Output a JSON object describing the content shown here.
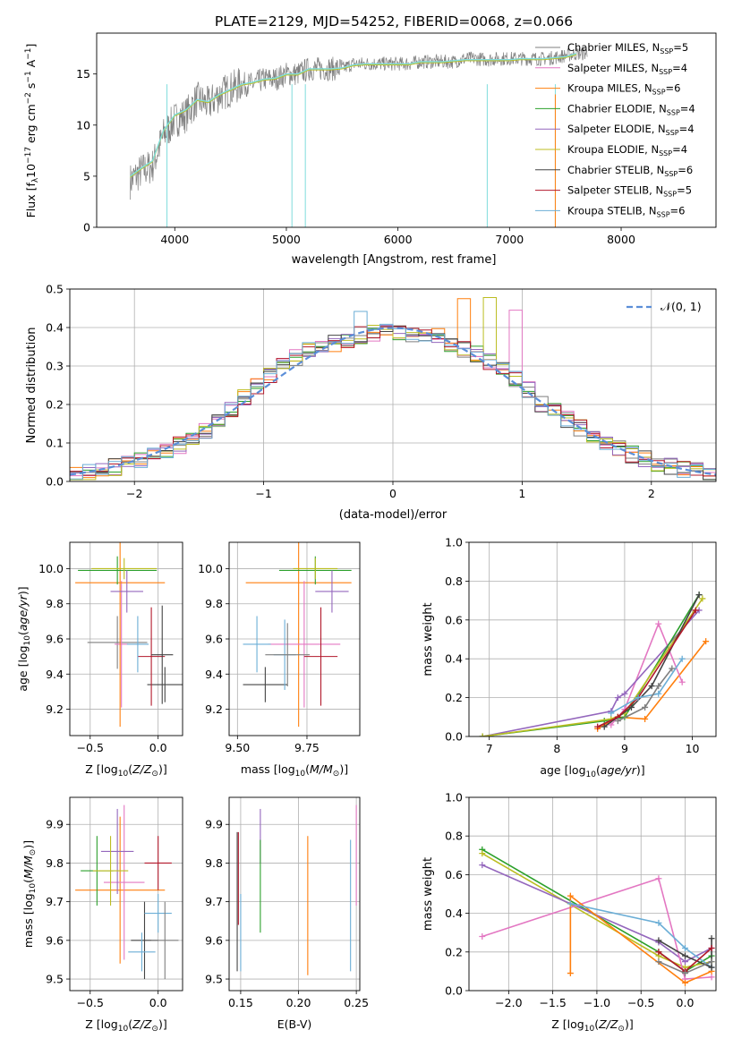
{
  "title": "PLATE=2129, MJD=54252, FIBERID=0068, z=0.066",
  "colors": {
    "Chabrier MILES": "#7f7f7f",
    "Salpeter MILES": "#e377c2",
    "Kroupa MILES": "#ff7f0e",
    "Chabrier ELODIE": "#2ca02c",
    "Salpeter ELODIE": "#9467bd",
    "Kroupa ELODIE": "#bcbd22",
    "Chabrier STELIB": "#444444",
    "Salpeter STELIB": "#b2182b",
    "Kroupa STELIB": "#6baed6"
  },
  "chart_data": [
    {
      "id": "spectrum",
      "type": "line",
      "xlabel": "wavelength [Angstrom, rest frame]",
      "ylabel": "Flux [f_λ10^-17 erg cm^-2 s^-1 A^-1]",
      "xlim": [
        3300,
        8850
      ],
      "ylim": [
        0,
        19
      ],
      "xticks": [
        4000,
        5000,
        6000,
        7000,
        8000
      ],
      "yticks": [
        0,
        5,
        10,
        15
      ],
      "legend_position": "right",
      "legend": [
        {
          "name": "Chabrier MILES",
          "nssp": "5"
        },
        {
          "name": "Salpeter MILES",
          "nssp": "4"
        },
        {
          "name": "Kroupa MILES",
          "nssp": "6"
        },
        {
          "name": "Chabrier ELODIE",
          "nssp": "4"
        },
        {
          "name": "Salpeter ELODIE",
          "nssp": "4"
        },
        {
          "name": "Kroupa ELODIE",
          "nssp": "4"
        },
        {
          "name": "Chabrier STELIB",
          "nssp": "6"
        },
        {
          "name": "Salpeter STELIB",
          "nssp": "5"
        },
        {
          "name": "Kroupa STELIB",
          "nssp": "6"
        }
      ],
      "data_series": {
        "x": [
          3600,
          3700,
          3800,
          3900,
          4000,
          4100,
          4200,
          4300,
          4400,
          4500,
          4600,
          4700,
          4800,
          4900,
          5000,
          5100,
          5200,
          5300,
          5400,
          5500,
          5600,
          5700,
          5800,
          5900,
          6000,
          6100,
          6200,
          6300,
          6400,
          6500,
          6600,
          6700,
          6800,
          6900,
          7000,
          7100,
          7200,
          7300,
          7400,
          7500,
          7600,
          7700
        ],
        "y": [
          4.5,
          5.5,
          6,
          9,
          10.5,
          11,
          12.5,
          12,
          13,
          13.5,
          14,
          14,
          14.5,
          14.5,
          15,
          15,
          15.5,
          15.5,
          15.5,
          15.5,
          16,
          16,
          16,
          16,
          16,
          16,
          16.2,
          16.2,
          16.2,
          16.2,
          16.5,
          16.5,
          16.4,
          16.5,
          16.5,
          16.5,
          16.5,
          16.5,
          16.6,
          16.8,
          17,
          17
        ]
      },
      "model_series": {
        "x": [
          3600,
          3700,
          3800,
          3900,
          4000,
          4100,
          4200,
          4300,
          4400,
          4500,
          4600,
          4700,
          4800,
          4900,
          5000,
          5100,
          5200,
          5300,
          5400,
          5500,
          5600,
          5700,
          5800,
          5900,
          6000,
          6100,
          6200,
          6300,
          6400,
          6500,
          6600,
          6700,
          6800,
          6900,
          7000,
          7100,
          7200,
          7300,
          7400,
          7500,
          7600
        ],
        "y": [
          5,
          5.8,
          6.5,
          9.5,
          11,
          11.5,
          12.5,
          12.3,
          13,
          13.5,
          14,
          14.2,
          14.5,
          14.6,
          15,
          15,
          15.5,
          15.5,
          15.5,
          15.6,
          15.9,
          16,
          16,
          16,
          16,
          16,
          16.2,
          16.2,
          16.2,
          16.3,
          16.4,
          16.4,
          16.4,
          16.4,
          16.4,
          16.5,
          16.5,
          16.5,
          16.6,
          16.7,
          17
        ]
      }
    },
    {
      "id": "residuals",
      "type": "line",
      "xlabel": "(data-model)/error",
      "ylabel": "Normed distribution",
      "xlim": [
        -2.5,
        2.5
      ],
      "ylim": [
        0,
        0.5
      ],
      "xticks": [
        -2,
        -1,
        0,
        1,
        2
      ],
      "yticks": [
        0.0,
        0.1,
        0.2,
        0.3,
        0.4,
        0.5
      ],
      "grid": true,
      "legend_position": "top-right",
      "legend": [
        "𝒩(0, 1)"
      ],
      "bin_edges": [
        -2.5,
        -2.4,
        -2.3,
        -2.2,
        -2.1,
        -2.0,
        -1.9,
        -1.8,
        -1.7,
        -1.6,
        -1.5,
        -1.4,
        -1.3,
        -1.2,
        -1.1,
        -1.0,
        -0.9,
        -0.8,
        -0.7,
        -0.6,
        -0.5,
        -0.4,
        -0.3,
        -0.2,
        -0.1,
        0.0,
        0.1,
        0.2,
        0.3,
        0.4,
        0.5,
        0.6,
        0.7,
        0.8,
        0.9,
        1.0,
        1.1,
        1.2,
        1.3,
        1.4,
        1.5,
        1.6,
        1.7,
        1.8,
        1.9,
        2.0,
        2.1,
        2.2,
        2.3,
        2.4,
        2.5
      ],
      "hist_base": [
        0.018,
        0.026,
        0.03,
        0.038,
        0.045,
        0.055,
        0.065,
        0.08,
        0.095,
        0.11,
        0.13,
        0.16,
        0.19,
        0.22,
        0.25,
        0.275,
        0.3,
        0.32,
        0.34,
        0.35,
        0.36,
        0.37,
        0.38,
        0.385,
        0.39,
        0.39,
        0.385,
        0.38,
        0.375,
        0.36,
        0.345,
        0.33,
        0.31,
        0.29,
        0.265,
        0.24,
        0.2,
        0.18,
        0.16,
        0.14,
        0.12,
        0.1,
        0.085,
        0.07,
        0.06,
        0.045,
        0.038,
        0.03,
        0.026,
        0.02
      ],
      "hist_peaks": [
        {
          "series": "Kroupa MILES",
          "bin": 30,
          "y": 0.475
        },
        {
          "series": "Kroupa ELODIE",
          "bin": 32,
          "y": 0.478
        },
        {
          "series": "Kroupa STELIB",
          "bin": 22,
          "y": 0.442
        },
        {
          "series": "Salpeter MILES",
          "bin": 34,
          "y": 0.445
        }
      ]
    },
    {
      "id": "age-vs-Z",
      "type": "scatter",
      "xlabel": "Z [log10(Z/Z⊙)]",
      "ylabel": "age  [log10(age/yr)]",
      "xlim": [
        -0.65,
        0.18
      ],
      "ylim": [
        9.05,
        10.15
      ],
      "xticks": [
        -0.5,
        0.0
      ],
      "yticks": [
        9.2,
        9.4,
        9.6,
        9.8,
        10.0
      ],
      "grid": true,
      "points": [
        {
          "series": "Chabrier MILES",
          "x": -0.3,
          "y": 9.58,
          "xerr": 0.22,
          "yerr": 0.15
        },
        {
          "series": "Salpeter MILES",
          "x": -0.27,
          "y": 9.57,
          "xerr": 0.05,
          "yerr": 0.36
        },
        {
          "series": "Kroupa MILES",
          "x": -0.28,
          "y": 9.92,
          "xerr": 0.33,
          "yerr": 0.82
        },
        {
          "series": "Chabrier ELODIE",
          "x": -0.3,
          "y": 9.99,
          "xerr": 0.29,
          "yerr": 0.08
        },
        {
          "series": "Salpeter ELODIE",
          "x": -0.23,
          "y": 9.87,
          "xerr": 0.12,
          "yerr": 0.12
        },
        {
          "series": "Kroupa ELODIE",
          "x": -0.25,
          "y": 10.0,
          "xerr": 0.24,
          "yerr": 0.06
        },
        {
          "series": "Chabrier STELIB",
          "x": 0.05,
          "y": 9.34,
          "xerr": 0.13,
          "yerr": 0.1
        },
        {
          "series": "Salpeter STELIB",
          "x": -0.05,
          "y": 9.5,
          "xerr": 0.1,
          "yerr": 0.28
        },
        {
          "series": "Kroupa STELIB",
          "x": -0.15,
          "y": 9.57,
          "xerr": 0.08,
          "yerr": 0.16
        },
        {
          "series": "Chabrier STELIB",
          "x": 0.03,
          "y": 9.51,
          "xerr": 0.08,
          "yerr": 0.28
        }
      ]
    },
    {
      "id": "age-vs-mass",
      "type": "scatter",
      "xlabel": "mass [log10(M/M⊙)]",
      "ylabel": "",
      "xlim": [
        9.47,
        9.94
      ],
      "ylim": [
        9.05,
        10.15
      ],
      "xticks": [
        9.5,
        9.75
      ],
      "yticks": [
        9.2,
        9.4,
        9.6,
        9.8,
        10.0
      ],
      "grid": true,
      "points": [
        {
          "series": "Kroupa MILES",
          "x": 9.72,
          "y": 9.92,
          "xerr": 0.19,
          "yerr": 0.82
        },
        {
          "series": "Salpeter MILES",
          "x": 9.74,
          "y": 9.57,
          "xerr": 0.13,
          "yerr": 0.36
        },
        {
          "series": "Chabrier ELODIE",
          "x": 9.78,
          "y": 9.99,
          "xerr": 0.13,
          "yerr": 0.08
        },
        {
          "series": "Salpeter ELODIE",
          "x": 9.84,
          "y": 9.87,
          "xerr": 0.06,
          "yerr": 0.12
        },
        {
          "series": "Kroupa ELODIE",
          "x": 9.78,
          "y": 10.0,
          "xerr": 0.08,
          "yerr": 0.06
        },
        {
          "series": "Chabrier STELIB",
          "x": 9.6,
          "y": 9.34,
          "xerr": 0.08,
          "yerr": 0.1
        },
        {
          "series": "Salpeter STELIB",
          "x": 9.8,
          "y": 9.5,
          "xerr": 0.06,
          "yerr": 0.28
        },
        {
          "series": "Kroupa STELIB",
          "x": 9.57,
          "y": 9.57,
          "xerr": 0.05,
          "yerr": 0.16
        },
        {
          "series": "Kroupa STELIB",
          "x": 9.67,
          "y": 9.51,
          "xerr": 0.04,
          "yerr": 0.2
        },
        {
          "series": "Chabrier MILES",
          "x": 9.68,
          "y": 9.51,
          "xerr": 0.08,
          "yerr": 0.18
        }
      ]
    },
    {
      "id": "mass-weight-vs-age",
      "type": "line",
      "xlabel": "age  [log10(age/yr)]",
      "ylabel": "mass weight",
      "xlim": [
        6.7,
        10.35
      ],
      "ylim": [
        0,
        1.0
      ],
      "xticks": [
        7,
        8,
        9,
        10
      ],
      "yticks": [
        0.0,
        0.2,
        0.4,
        0.6,
        0.8,
        1.0
      ],
      "grid": true,
      "series": [
        {
          "name": "Kroupa MILES",
          "x": [
            8.6,
            8.9,
            9.3,
            10.2
          ],
          "y": [
            0.04,
            0.1,
            0.09,
            0.49
          ]
        },
        {
          "name": "Salpeter MILES",
          "x": [
            8.8,
            9.0,
            9.5,
            9.85
          ],
          "y": [
            0.06,
            0.14,
            0.58,
            0.28
          ]
        },
        {
          "name": "Salpeter ELODIE",
          "x": [
            6.9,
            8.8,
            8.9,
            9.0,
            10.1
          ],
          "y": [
            0.0,
            0.13,
            0.2,
            0.22,
            0.65
          ]
        },
        {
          "name": "Chabrier ELODIE",
          "x": [
            6.9,
            8.7,
            9.0,
            10.1
          ],
          "y": [
            0.0,
            0.08,
            0.1,
            0.73
          ]
        },
        {
          "name": "Kroupa ELODIE",
          "x": [
            6.9,
            8.8,
            9.0,
            10.15
          ],
          "y": [
            0.0,
            0.09,
            0.12,
            0.71
          ]
        },
        {
          "name": "Chabrier STELIB",
          "x": [
            8.7,
            9.1,
            9.4,
            10.1
          ],
          "y": [
            0.05,
            0.15,
            0.26,
            0.73
          ]
        },
        {
          "name": "Salpeter STELIB",
          "x": [
            8.6,
            8.9,
            9.2,
            10.05
          ],
          "y": [
            0.05,
            0.1,
            0.2,
            0.65
          ]
        },
        {
          "name": "Kroupa STELIB",
          "x": [
            8.8,
            9.2,
            9.5,
            9.85
          ],
          "y": [
            0.12,
            0.2,
            0.22,
            0.4
          ]
        },
        {
          "name": "Chabrier MILES",
          "x": [
            8.9,
            9.3,
            9.5,
            9.7
          ],
          "y": [
            0.08,
            0.15,
            0.26,
            0.35
          ]
        }
      ]
    },
    {
      "id": "mass-vs-Z",
      "type": "scatter",
      "xlabel": "Z [log10(Z/Z⊙)]",
      "ylabel": "mass [log10(M/M⊙)]",
      "xlim": [
        -0.65,
        0.18
      ],
      "ylim": [
        9.47,
        9.97
      ],
      "xticks": [
        -0.5,
        0.0
      ],
      "yticks": [
        9.5,
        9.6,
        9.7,
        9.8,
        9.9
      ],
      "grid": true,
      "points": [
        {
          "series": "Kroupa MILES",
          "x": -0.28,
          "y": 9.73,
          "xerr": 0.33,
          "yerr": 0.19
        },
        {
          "series": "Salpeter MILES",
          "x": -0.25,
          "y": 9.75,
          "xerr": 0.15,
          "yerr": 0.2
        },
        {
          "series": "Chabrier ELODIE",
          "x": -0.45,
          "y": 9.78,
          "xerr": 0.12,
          "yerr": 0.09
        },
        {
          "series": "Salpeter ELODIE",
          "x": -0.3,
          "y": 9.83,
          "xerr": 0.12,
          "yerr": 0.11
        },
        {
          "series": "Kroupa ELODIE",
          "x": -0.35,
          "y": 9.78,
          "xerr": 0.13,
          "yerr": 0.09
        },
        {
          "series": "Chabrier STELIB",
          "x": -0.1,
          "y": 9.6,
          "xerr": 0.1,
          "yerr": 0.1
        },
        {
          "series": "Salpeter STELIB",
          "x": 0.0,
          "y": 9.8,
          "xerr": 0.1,
          "yerr": 0.07
        },
        {
          "series": "Kroupa STELIB",
          "x": -0.12,
          "y": 9.57,
          "xerr": 0.1,
          "yerr": 0.05
        },
        {
          "series": "Kroupa STELIB",
          "x": 0.0,
          "y": 9.67,
          "xerr": 0.1,
          "yerr": 0.05
        },
        {
          "series": "Chabrier MILES",
          "x": 0.05,
          "y": 9.6,
          "xerr": 0.1,
          "yerr": 0.1
        }
      ]
    },
    {
      "id": "mass-vs-ebv",
      "type": "scatter",
      "xlabel": "E(B-V)",
      "ylabel": "",
      "xlim": [
        0.14,
        0.253
      ],
      "ylim": [
        9.47,
        9.97
      ],
      "xticks": [
        0.15,
        0.2,
        0.25
      ],
      "yticks": [
        9.5,
        9.6,
        9.7,
        9.8,
        9.9
      ],
      "grid": true,
      "points": [
        {
          "series": "Chabrier STELIB",
          "x": 0.147,
          "y": 9.7,
          "xerr": 0,
          "yerr": 0.18
        },
        {
          "series": "Salpeter STELIB",
          "x": 0.148,
          "y": 9.76,
          "xerr": 0,
          "yerr": 0.12
        },
        {
          "series": "Kroupa STELIB",
          "x": 0.15,
          "y": 9.62,
          "xerr": 0,
          "yerr": 0.1
        },
        {
          "series": "Salpeter ELODIE",
          "x": 0.167,
          "y": 9.87,
          "xerr": 0,
          "yerr": 0.07
        },
        {
          "series": "Chabrier ELODIE",
          "x": 0.167,
          "y": 9.74,
          "xerr": 0,
          "yerr": 0.12
        },
        {
          "series": "Kroupa MILES",
          "x": 0.208,
          "y": 9.69,
          "xerr": 0,
          "yerr": 0.18
        },
        {
          "series": "Kroupa STELIB",
          "x": 0.245,
          "y": 9.69,
          "xerr": 0,
          "yerr": 0.17
        },
        {
          "series": "Salpeter MILES",
          "x": 0.25,
          "y": 9.82,
          "xerr": 0,
          "yerr": 0.13
        }
      ]
    },
    {
      "id": "mass-weight-vs-Z",
      "type": "line",
      "xlabel": "Z [log10(Z/Z⊙)]",
      "ylabel": "mass weight",
      "xlim": [
        -2.45,
        0.35
      ],
      "ylim": [
        0,
        1.0
      ],
      "xticks": [
        -2.0,
        -1.5,
        -1.0,
        -0.5,
        0.0
      ],
      "yticks": [
        0.0,
        0.2,
        0.4,
        0.6,
        0.8,
        1.0
      ],
      "grid": true,
      "series": [
        {
          "name": "Chabrier ELODIE",
          "x": [
            -2.3,
            -0.3,
            0.0,
            0.3
          ],
          "y": [
            0.73,
            0.2,
            0.1,
            0.18
          ]
        },
        {
          "name": "Kroupa ELODIE",
          "x": [
            -2.3,
            -0.3,
            0.0,
            0.3
          ],
          "y": [
            0.71,
            0.18,
            0.12,
            0.15
          ]
        },
        {
          "name": "Salpeter ELODIE",
          "x": [
            -2.3,
            -0.3,
            0.0,
            0.3
          ],
          "y": [
            0.65,
            0.25,
            0.15,
            0.22
          ]
        },
        {
          "name": "Salpeter MILES",
          "x": [
            -2.3,
            -0.3,
            0.0,
            0.3
          ],
          "y": [
            0.28,
            0.58,
            0.06,
            0.07
          ]
        },
        {
          "name": "Kroupa MILES",
          "x": [
            -1.3,
            -1.3,
            0.0,
            0.3
          ],
          "y": [
            0.09,
            0.49,
            0.04,
            0.1
          ]
        },
        {
          "name": "Kroupa STELIB",
          "x": [
            -1.3,
            -0.3,
            0.0,
            0.3
          ],
          "y": [
            0.45,
            0.35,
            0.22,
            0.12
          ]
        },
        {
          "name": "Chabrier STELIB",
          "x": [
            -0.3,
            0.0,
            0.3,
            0.3
          ],
          "y": [
            0.26,
            0.18,
            0.12,
            0.27
          ]
        },
        {
          "name": "Salpeter STELIB",
          "x": [
            -0.3,
            0.0,
            0.3
          ],
          "y": [
            0.2,
            0.1,
            0.22
          ]
        },
        {
          "name": "Chabrier MILES",
          "x": [
            -0.3,
            0.0,
            0.3
          ],
          "y": [
            0.15,
            0.09,
            0.15
          ]
        }
      ]
    }
  ]
}
